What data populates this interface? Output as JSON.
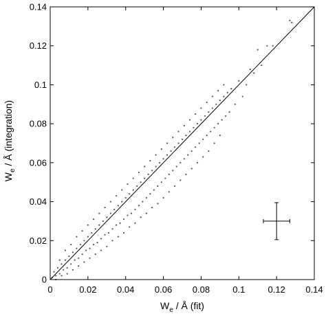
{
  "chart_data": {
    "type": "scatter",
    "title": "",
    "xlabel": {
      "main": "W",
      "sub": "e",
      "rest": " / Å (fit)"
    },
    "ylabel": {
      "main": "W",
      "sub": "e",
      "rest": " / Å (integration)"
    },
    "xlim": [
      0,
      0.14
    ],
    "ylim": [
      0,
      0.14
    ],
    "xticks": [
      0,
      0.02,
      0.04,
      0.06,
      0.08,
      0.1,
      0.12,
      0.14
    ],
    "yticks": [
      0,
      0.02,
      0.04,
      0.06,
      0.08,
      0.1,
      0.12,
      0.14
    ],
    "xtick_labels": [
      "0",
      "0.02",
      "0.04",
      "0.06",
      "0.08",
      "0.1",
      "0.12",
      "0.14"
    ],
    "ytick_labels": [
      "0",
      "0.02",
      "0.04",
      "0.06",
      "0.08",
      "0.1",
      "0.12",
      "0.14"
    ],
    "grid": false,
    "diagonal": {
      "from": [
        0,
        0
      ],
      "to": [
        0.14,
        0.14
      ]
    },
    "error_bar": {
      "x": 0.12,
      "y": 0.03,
      "xerr": 0.007,
      "yerr": 0.0095
    },
    "points": [
      [
        0.001,
        0.001
      ],
      [
        0.002,
        0.004
      ],
      [
        0.003,
        0.002
      ],
      [
        0.004,
        0.006
      ],
      [
        0.005,
        0.003
      ],
      [
        0.006,
        0.008
      ],
      [
        0.007,
        0.005
      ],
      [
        0.008,
        0.01
      ],
      [
        0.009,
        0.006
      ],
      [
        0.01,
        0.012
      ],
      [
        0.011,
        0.008
      ],
      [
        0.012,
        0.014
      ],
      [
        0.013,
        0.01
      ],
      [
        0.014,
        0.016
      ],
      [
        0.015,
        0.011
      ],
      [
        0.016,
        0.018
      ],
      [
        0.017,
        0.013
      ],
      [
        0.018,
        0.02
      ],
      [
        0.019,
        0.015
      ],
      [
        0.02,
        0.022
      ],
      [
        0.021,
        0.016
      ],
      [
        0.022,
        0.024
      ],
      [
        0.023,
        0.018
      ],
      [
        0.024,
        0.026
      ],
      [
        0.025,
        0.019
      ],
      [
        0.026,
        0.028
      ],
      [
        0.027,
        0.021
      ],
      [
        0.028,
        0.03
      ],
      [
        0.029,
        0.023
      ],
      [
        0.03,
        0.032
      ],
      [
        0.031,
        0.024
      ],
      [
        0.032,
        0.034
      ],
      [
        0.033,
        0.026
      ],
      [
        0.034,
        0.036
      ],
      [
        0.035,
        0.028
      ],
      [
        0.036,
        0.038
      ],
      [
        0.037,
        0.029
      ],
      [
        0.038,
        0.04
      ],
      [
        0.039,
        0.031
      ],
      [
        0.04,
        0.042
      ],
      [
        0.041,
        0.033
      ],
      [
        0.042,
        0.044
      ],
      [
        0.043,
        0.034
      ],
      [
        0.044,
        0.046
      ],
      [
        0.045,
        0.036
      ],
      [
        0.046,
        0.048
      ],
      [
        0.047,
        0.038
      ],
      [
        0.048,
        0.05
      ],
      [
        0.049,
        0.04
      ],
      [
        0.05,
        0.052
      ],
      [
        0.051,
        0.042
      ],
      [
        0.052,
        0.054
      ],
      [
        0.053,
        0.044
      ],
      [
        0.054,
        0.056
      ],
      [
        0.055,
        0.046
      ],
      [
        0.056,
        0.058
      ],
      [
        0.057,
        0.048
      ],
      [
        0.058,
        0.06
      ],
      [
        0.059,
        0.05
      ],
      [
        0.06,
        0.062
      ],
      [
        0.061,
        0.052
      ],
      [
        0.062,
        0.064
      ],
      [
        0.063,
        0.054
      ],
      [
        0.064,
        0.066
      ],
      [
        0.065,
        0.056
      ],
      [
        0.066,
        0.068
      ],
      [
        0.067,
        0.058
      ],
      [
        0.068,
        0.07
      ],
      [
        0.069,
        0.06
      ],
      [
        0.07,
        0.072
      ],
      [
        0.071,
        0.062
      ],
      [
        0.072,
        0.074
      ],
      [
        0.073,
        0.064
      ],
      [
        0.074,
        0.076
      ],
      [
        0.075,
        0.066
      ],
      [
        0.076,
        0.078
      ],
      [
        0.077,
        0.068
      ],
      [
        0.078,
        0.08
      ],
      [
        0.079,
        0.07
      ],
      [
        0.08,
        0.082
      ],
      [
        0.081,
        0.072
      ],
      [
        0.082,
        0.084
      ],
      [
        0.083,
        0.074
      ],
      [
        0.084,
        0.086
      ],
      [
        0.085,
        0.076
      ],
      [
        0.086,
        0.088
      ],
      [
        0.087,
        0.078
      ],
      [
        0.088,
        0.09
      ],
      [
        0.089,
        0.08
      ],
      [
        0.09,
        0.092
      ],
      [
        0.091,
        0.082
      ],
      [
        0.092,
        0.094
      ],
      [
        0.093,
        0.084
      ],
      [
        0.094,
        0.096
      ],
      [
        0.095,
        0.086
      ],
      [
        0.096,
        0.098
      ],
      [
        0.098,
        0.09
      ],
      [
        0.1,
        0.102
      ],
      [
        0.102,
        0.094
      ],
      [
        0.104,
        0.1
      ],
      [
        0.106,
        0.108
      ],
      [
        0.108,
        0.106
      ],
      [
        0.11,
        0.118
      ],
      [
        0.112,
        0.11
      ],
      [
        0.115,
        0.12
      ],
      [
        0.118,
        0.12
      ],
      [
        0.127,
        0.133
      ],
      [
        0.128,
        0.132
      ],
      [
        0.003,
        0.0
      ],
      [
        0.006,
        0.002
      ],
      [
        0.009,
        0.003
      ],
      [
        0.012,
        0.005
      ],
      [
        0.015,
        0.007
      ],
      [
        0.018,
        0.009
      ],
      [
        0.021,
        0.011
      ],
      [
        0.024,
        0.013
      ],
      [
        0.027,
        0.015
      ],
      [
        0.03,
        0.017
      ],
      [
        0.033,
        0.02
      ],
      [
        0.036,
        0.022
      ],
      [
        0.039,
        0.024
      ],
      [
        0.042,
        0.027
      ],
      [
        0.045,
        0.029
      ],
      [
        0.048,
        0.032
      ],
      [
        0.051,
        0.034
      ],
      [
        0.054,
        0.037
      ],
      [
        0.057,
        0.039
      ],
      [
        0.06,
        0.042
      ],
      [
        0.063,
        0.045
      ],
      [
        0.066,
        0.048
      ],
      [
        0.069,
        0.051
      ],
      [
        0.072,
        0.054
      ],
      [
        0.075,
        0.057
      ],
      [
        0.078,
        0.06
      ],
      [
        0.081,
        0.063
      ],
      [
        0.084,
        0.066
      ],
      [
        0.087,
        0.07
      ],
      [
        0.09,
        0.074
      ],
      [
        0.005,
        0.01
      ],
      [
        0.008,
        0.015
      ],
      [
        0.011,
        0.018
      ],
      [
        0.014,
        0.022
      ],
      [
        0.017,
        0.025
      ],
      [
        0.02,
        0.028
      ],
      [
        0.023,
        0.031
      ],
      [
        0.026,
        0.034
      ],
      [
        0.029,
        0.037
      ],
      [
        0.032,
        0.04
      ],
      [
        0.035,
        0.043
      ],
      [
        0.038,
        0.046
      ],
      [
        0.041,
        0.049
      ],
      [
        0.044,
        0.052
      ],
      [
        0.047,
        0.055
      ],
      [
        0.05,
        0.058
      ],
      [
        0.053,
        0.061
      ],
      [
        0.056,
        0.064
      ],
      [
        0.059,
        0.067
      ],
      [
        0.062,
        0.07
      ],
      [
        0.065,
        0.073
      ],
      [
        0.068,
        0.076
      ],
      [
        0.071,
        0.079
      ],
      [
        0.074,
        0.082
      ],
      [
        0.077,
        0.085
      ],
      [
        0.08,
        0.088
      ],
      [
        0.083,
        0.091
      ],
      [
        0.086,
        0.094
      ],
      [
        0.089,
        0.097
      ],
      [
        0.092,
        0.1
      ]
    ]
  }
}
